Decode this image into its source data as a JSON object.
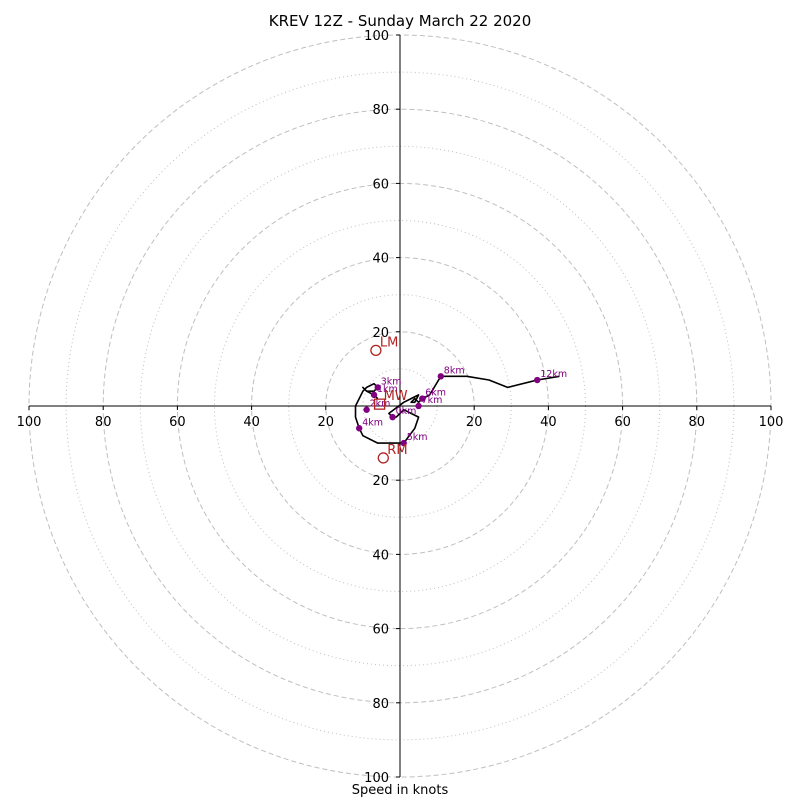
{
  "chart_data": {
    "type": "hodograph",
    "title": "KREV 12Z - Sunday March 22 2020",
    "xlabel": "Speed in knots",
    "range": [
      -100,
      100
    ],
    "rings_major": [
      20,
      40,
      60,
      80,
      100
    ],
    "rings_minor": [
      10,
      30,
      50,
      70,
      90
    ],
    "axis_ticks": [
      {
        "pos": 20,
        "label": "20"
      },
      {
        "pos": 40,
        "label": "40"
      },
      {
        "pos": 60,
        "label": "60"
      },
      {
        "pos": 80,
        "label": "80"
      },
      {
        "pos": 100,
        "label": "100"
      }
    ],
    "trace": [
      [
        -6,
        2
      ],
      [
        -7,
        3
      ],
      [
        -9,
        4
      ],
      [
        -10,
        5
      ],
      [
        -9,
        4
      ],
      [
        -7,
        4
      ],
      [
        -6,
        5
      ],
      [
        -7,
        6
      ],
      [
        -9,
        5
      ],
      [
        -10,
        4
      ],
      [
        -11,
        2
      ],
      [
        -12,
        0
      ],
      [
        -12,
        -3
      ],
      [
        -11,
        -6
      ],
      [
        -10,
        -8
      ],
      [
        -6,
        -10
      ],
      [
        0,
        -10
      ],
      [
        1,
        -10
      ],
      [
        4,
        -6
      ],
      [
        5,
        -3
      ],
      [
        3,
        -2
      ],
      [
        1,
        -1
      ],
      [
        -1,
        -3
      ],
      [
        -2,
        -3
      ],
      [
        -3,
        -2
      ],
      [
        1,
        1
      ],
      [
        3,
        2
      ],
      [
        5,
        3
      ],
      [
        4,
        1
      ],
      [
        3,
        1
      ],
      [
        4,
        2
      ],
      [
        5,
        1
      ],
      [
        6,
        2
      ],
      [
        8,
        3
      ],
      [
        11,
        8
      ],
      [
        18,
        8
      ],
      [
        24,
        7
      ],
      [
        29,
        5
      ],
      [
        37,
        7
      ],
      [
        43,
        8
      ]
    ],
    "height_markers": [
      {
        "label": "0km",
        "u": -2,
        "v": -3
      },
      {
        "label": "1km",
        "u": -7,
        "v": 3
      },
      {
        "label": "2km",
        "u": -9,
        "v": -1
      },
      {
        "label": "3km",
        "u": -6,
        "v": 5
      },
      {
        "label": "4km",
        "u": -11,
        "v": -6
      },
      {
        "label": "5km",
        "u": 1,
        "v": -10
      },
      {
        "label": "6km",
        "u": 6,
        "v": 2
      },
      {
        "label": "7km",
        "u": 5,
        "v": 0
      },
      {
        "label": "8km",
        "u": 11,
        "v": 8
      },
      {
        "label": "12km",
        "u": 37,
        "v": 7
      }
    ],
    "motion_markers": [
      {
        "label": "LM",
        "u": -6.5,
        "v": 15,
        "shape": "circle"
      },
      {
        "label": "RM",
        "u": -4.5,
        "v": -14,
        "shape": "circle"
      },
      {
        "label": "MW",
        "u": -5.5,
        "v": 0.5,
        "shape": "square"
      }
    ],
    "colors": {
      "trace": "#000000",
      "height_markers": "#800080",
      "motion_markers": "#b22222",
      "grid": "#bfbfbf",
      "axis": "#000000"
    }
  }
}
